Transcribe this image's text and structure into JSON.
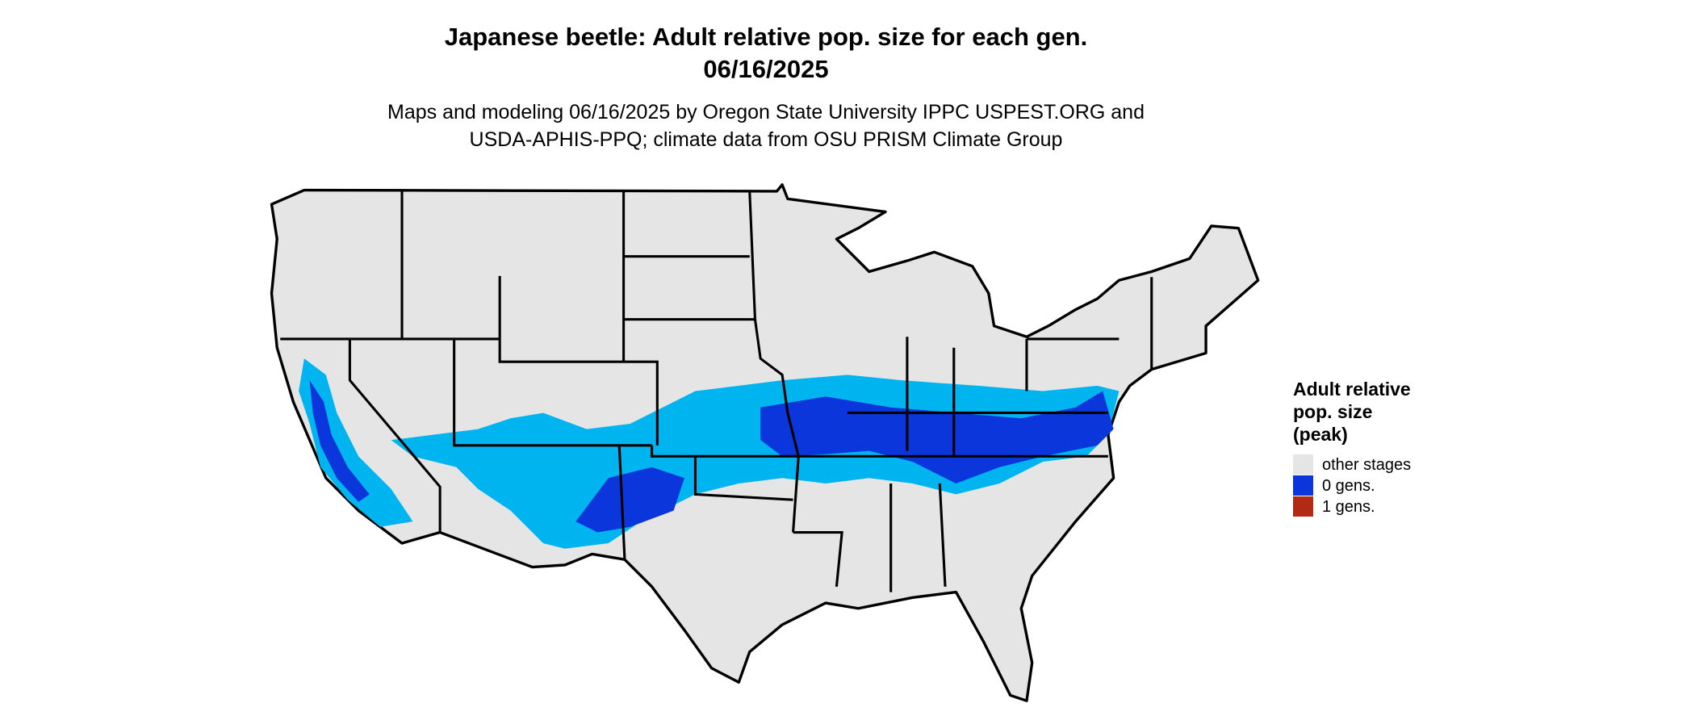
{
  "title": "Japanese beetle: Adult relative pop. size for each gen.",
  "date": "06/16/2025",
  "subtitle": [
    "Maps and modeling 06/16/2025 by Oregon State University IPPC USPEST.ORG and",
    "USDA-APHIS-PPQ; climate data from OSU PRISM Climate Group"
  ],
  "legend": {
    "title": [
      "Adult relative",
      "pop. size",
      "(peak)"
    ],
    "items": [
      {
        "label": "other stages",
        "color": "#e5e5e5"
      },
      {
        "label": "0 gens.",
        "color": "#0a36dc"
      },
      {
        "label": "1 gens.",
        "color": "#b22a14"
      }
    ]
  }
}
